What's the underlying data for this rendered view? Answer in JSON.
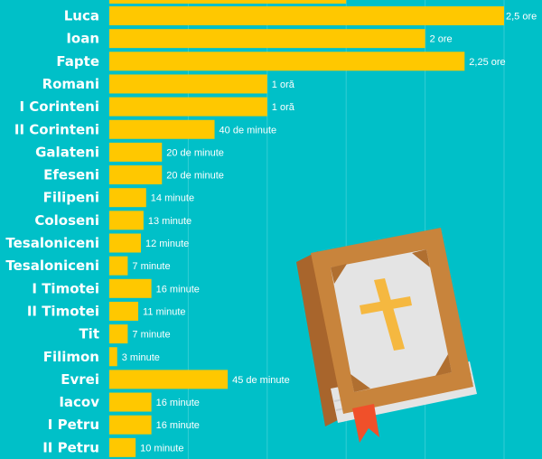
{
  "chart_data": {
    "type": "bar",
    "orientation": "horizontal",
    "title": "",
    "xlabel": "",
    "ylabel": "",
    "categories": [
      "Luca",
      "Ioan",
      "Fapte",
      "Romani",
      "I Corinteni",
      "II Corinteni",
      "Galateni",
      "Efeseni",
      "Filipeni",
      "Coloseni",
      "I Tesaloniceni",
      "II Tesaloniceni",
      "I Timotei",
      "II Timotei",
      "Tit",
      "Filimon",
      "Evrei",
      "Iacov",
      "I Petru",
      "II Petru"
    ],
    "values": [
      150,
      120,
      135,
      60,
      60,
      40,
      20,
      20,
      14,
      13,
      12,
      7,
      16,
      11,
      7,
      3,
      45,
      16,
      16,
      10
    ],
    "value_labels": [
      "2,5 ore",
      "2 ore",
      "2,25 ore",
      "1 oră",
      "1 oră",
      "40 de minute",
      "20 de minute",
      "20 de minute",
      "14 minute",
      "13 minute",
      "12 minute",
      "7 minute",
      "16 minute",
      "11 minute",
      "7 minute",
      "3 minute",
      "45 de minute",
      "16 minute",
      "16 minute",
      "10 minute"
    ],
    "partial_bar_above_value": 90,
    "unit": "minute",
    "xlim": [
      0,
      150
    ],
    "grid": true,
    "legend": "none",
    "bar_color": "#ffc800",
    "background_color": "#00c0c8"
  },
  "illustration": {
    "name": "bible-book-icon",
    "colors": {
      "cover": "#c8843c",
      "spine": "#a8652c",
      "page": "#e4e4e4",
      "cross": "#f5b840",
      "bookmark": "#f0502a"
    }
  }
}
